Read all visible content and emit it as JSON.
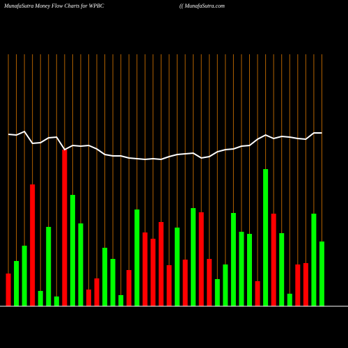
{
  "chart_data": {
    "type": "bar",
    "title": "MunafaSutra  Money Flow  Charts for WPBC",
    "subtitle": "(( MunafaSutra.com",
    "ylim": [
      0,
      362
    ],
    "categories": [
      null,
      null,
      null,
      null,
      null,
      null,
      null,
      null,
      null,
      null,
      null,
      null,
      null,
      null,
      null,
      null,
      null,
      null,
      null,
      null,
      null,
      null,
      null,
      null,
      null,
      null,
      null,
      null,
      null,
      null,
      null,
      null,
      null,
      null,
      null,
      null,
      null,
      null,
      null,
      null
    ],
    "series": [
      {
        "colors": [
          "#ff0000",
          "#00ff00",
          "#00ff00",
          "#ff0000",
          "#00ff00",
          "#00ff00",
          "#00ff00",
          "#ff0000",
          "#00ff00",
          "#00ff00",
          "#ff0000",
          "#ff0000",
          "#00ff00",
          "#00ff00",
          "#00ff00",
          "#ff0000",
          "#00ff00",
          "#ff0000",
          "#ff0000",
          "#ff0000",
          "#ff0000",
          "#00ff00",
          "#ff0000",
          "#00ff00",
          "#ff0000",
          "#ff0000",
          "#00ff00",
          "#00ff00",
          "#00ff00",
          "#00ff00",
          "#00ff00",
          "#ff0000",
          "#00ff00",
          "#ff0000",
          "#00ff00",
          "#00ff00",
          "#ff0000",
          "#ff0000",
          "#00ff00",
          "#00ff00"
        ],
        "values": [
          47,
          65,
          87,
          175,
          22,
          114,
          14,
          225,
          160,
          119,
          24,
          40,
          84,
          68,
          16,
          52,
          139,
          106,
          97,
          121,
          59,
          113,
          67,
          141,
          135,
          68,
          39,
          60,
          134,
          107,
          104,
          36,
          197,
          133,
          105,
          18,
          60,
          62,
          133,
          93
        ]
      },
      {
        "type": "line",
        "color": "#ffffff",
        "values": [
          247,
          246,
          251,
          234,
          235,
          242,
          243,
          225,
          231,
          230,
          231,
          226,
          218,
          216,
          216,
          213,
          212,
          211,
          212,
          211,
          215,
          218,
          219,
          220,
          213,
          215,
          222,
          225,
          226,
          230,
          231,
          240,
          246,
          241,
          244,
          243,
          241,
          240,
          249,
          249
        ]
      }
    ]
  }
}
